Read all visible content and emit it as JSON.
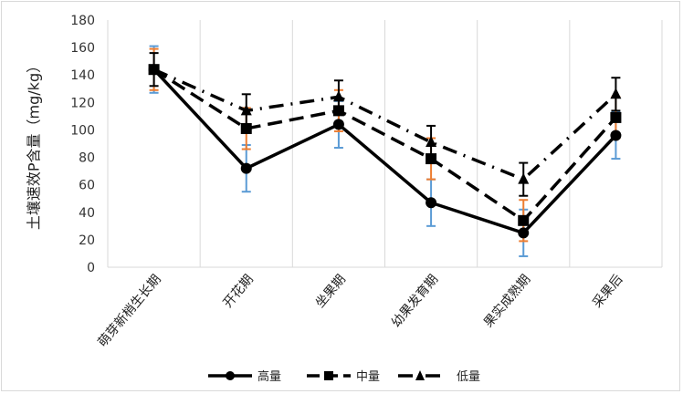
{
  "chart_data": {
    "type": "line",
    "title": "",
    "xlabel": "",
    "ylabel": "土壤速效P含量（mg/kg）",
    "ylim": [
      0,
      180
    ],
    "yticks": [
      0,
      20,
      40,
      60,
      80,
      100,
      120,
      140,
      160,
      180
    ],
    "grid": "vertical",
    "legend_position": "bottom",
    "categories": [
      "萌芽新梢生长期",
      "开花期",
      "坐果期",
      "幼果发育期",
      "果实成熟期",
      "采果后"
    ],
    "series": [
      {
        "name": "高量",
        "values": [
          144,
          72,
          104,
          47,
          25,
          96
        ],
        "error": 17,
        "error_color": "#5b9bd5",
        "marker": "circle",
        "line_style": "solid"
      },
      {
        "name": "中量",
        "values": [
          144,
          101,
          114,
          79,
          34,
          109
        ],
        "error": 15,
        "error_color": "#ed7d31",
        "marker": "square",
        "line_style": "dash"
      },
      {
        "name": "低量",
        "values": [
          144,
          114,
          124,
          91,
          64,
          126
        ],
        "error": 12,
        "error_color": "#000000",
        "marker": "triangle",
        "line_style": "dash-dot"
      }
    ]
  }
}
